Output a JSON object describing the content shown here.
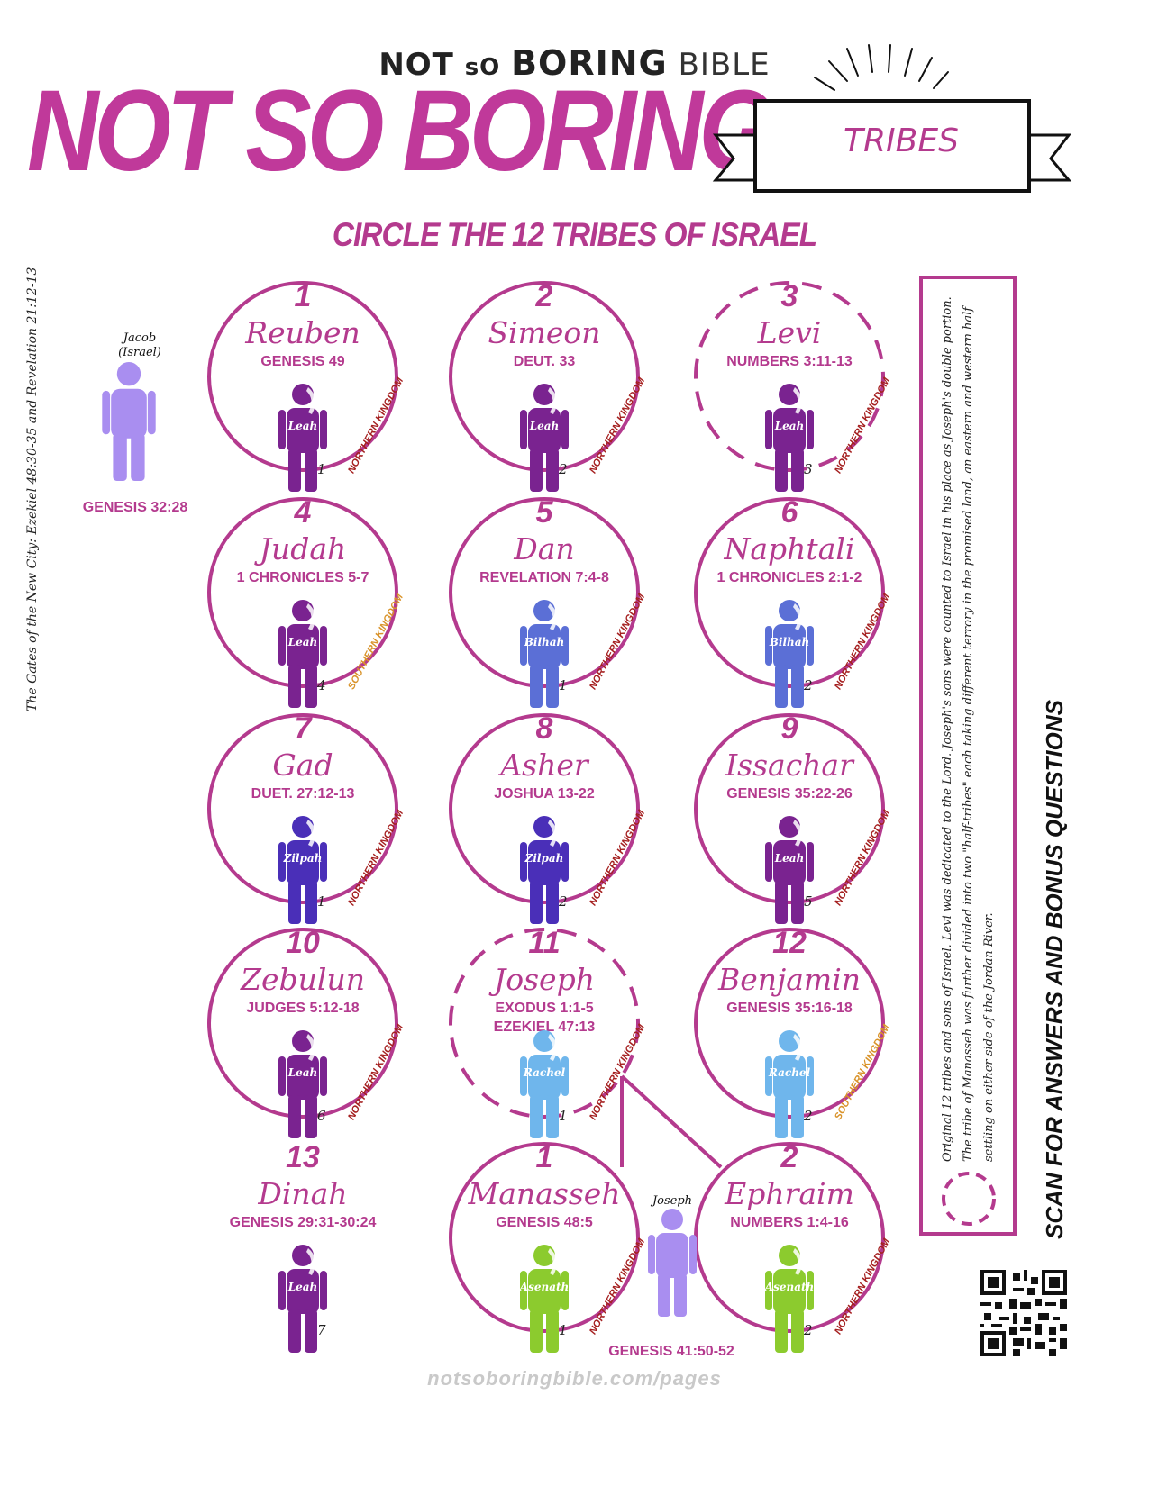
{
  "header": {
    "brand_part1": "NOT",
    "brand_part2": "sO",
    "brand_part3": "BORING",
    "brand_part4": "BIBLE",
    "title": "NOT SO BORING",
    "banner": "TRIBES",
    "subtitle": "CIRCLE THE 12 TRIBES OF ISRAEL"
  },
  "side_reference": "The Gates of the New City: Ezekiel 48:30-35 and Revelation 21:12-13",
  "jacob": {
    "line1": "Jacob",
    "line2": "(Israel)",
    "reference": "GENESIS 32:28",
    "color": "#a98ef0"
  },
  "tribes": [
    {
      "number": "1",
      "name": "Reuben",
      "reference": "GENESIS 49",
      "reference2": "",
      "mother": "Leah",
      "order": "1",
      "kingdom": "NORTHERN KINGDOM",
      "kingdom_type": "north",
      "figure_color": "#7a2390",
      "dashed": false
    },
    {
      "number": "2",
      "name": "Simeon",
      "reference": "DEUT. 33",
      "reference2": "",
      "mother": "Leah",
      "order": "2",
      "kingdom": "NORTHERN KINGDOM",
      "kingdom_type": "north",
      "figure_color": "#7a2390",
      "dashed": false
    },
    {
      "number": "3",
      "name": "Levi",
      "reference": "NUMBERS 3:11-13",
      "reference2": "",
      "mother": "Leah",
      "order": "3",
      "kingdom": "NORTHERN KINGDOM",
      "kingdom_type": "north",
      "figure_color": "#7a2390",
      "dashed": true
    },
    {
      "number": "4",
      "name": "Judah",
      "reference": "1 CHRONICLES 5-7",
      "reference2": "",
      "mother": "Leah",
      "order": "4",
      "kingdom": "SOUTHERN KINGDOM",
      "kingdom_type": "south",
      "figure_color": "#7a2390",
      "dashed": false
    },
    {
      "number": "5",
      "name": "Dan",
      "reference": "REVELATION 7:4-8",
      "reference2": "",
      "mother": "Bilhah",
      "order": "1",
      "kingdom": "NORTHERN KINGDOM",
      "kingdom_type": "north",
      "figure_color": "#5b6fd6",
      "dashed": false
    },
    {
      "number": "6",
      "name": "Naphtali",
      "reference": "1 CHRONICLES 2:1-2",
      "reference2": "",
      "mother": "Bilhah",
      "order": "2",
      "kingdom": "NORTHERN KINGDOM",
      "kingdom_type": "north",
      "figure_color": "#5b6fd6",
      "dashed": false
    },
    {
      "number": "7",
      "name": "Gad",
      "reference": "DUET. 27:12-13",
      "reference2": "",
      "mother": "Zilpah",
      "order": "1",
      "kingdom": "NORTHERN KINGDOM",
      "kingdom_type": "north",
      "figure_color": "#4a2fb8",
      "dashed": false
    },
    {
      "number": "8",
      "name": "Asher",
      "reference": "JOSHUA 13-22",
      "reference2": "",
      "mother": "Zilpah",
      "order": "2",
      "kingdom": "NORTHERN KINGDOM",
      "kingdom_type": "north",
      "figure_color": "#4a2fb8",
      "dashed": false
    },
    {
      "number": "9",
      "name": "Issachar",
      "reference": "GENESIS 35:22-26",
      "reference2": "",
      "mother": "Leah",
      "order": "5",
      "kingdom": "NORTHERN KINGDOM",
      "kingdom_type": "north",
      "figure_color": "#7a2390",
      "dashed": false
    },
    {
      "number": "10",
      "name": "Zebulun",
      "reference": "JUDGES 5:12-18",
      "reference2": "",
      "mother": "Leah",
      "order": "6",
      "kingdom": "NORTHERN KINGDOM",
      "kingdom_type": "north",
      "figure_color": "#7a2390",
      "dashed": false
    },
    {
      "number": "11",
      "name": "Joseph",
      "reference": "EXODUS 1:1-5",
      "reference2": "EZEKIEL 47:13",
      "mother": "Rachel",
      "order": "1",
      "kingdom": "NORTHERN KINGDOM",
      "kingdom_type": "north",
      "figure_color": "#6fb6ec",
      "dashed": true
    },
    {
      "number": "12",
      "name": "Benjamin",
      "reference": "GENESIS 35:16-18",
      "reference2": "",
      "mother": "Rachel",
      "order": "2",
      "kingdom": "SOUTHERN KINGDOM",
      "kingdom_type": "south",
      "figure_color": "#6fb6ec",
      "dashed": false
    }
  ],
  "dinah": {
    "number": "13",
    "name": "Dinah",
    "reference": "GENESIS 29:31-30:24",
    "mother": "Leah",
    "order": "7",
    "figure_color": "#7a2390"
  },
  "half_tribes": [
    {
      "number": "1",
      "name": "Manasseh",
      "reference": "GENESIS 48:5",
      "mother": "Asenath",
      "order": "1",
      "kingdom": "NORTHERN KINGDOM",
      "figure_color": "#8ccb2e"
    },
    {
      "number": "2",
      "name": "Ephraim",
      "reference": "NUMBERS 1:4-16",
      "mother": "Asenath",
      "order": "2",
      "kingdom": "NORTHERN KINGDOM",
      "figure_color": "#8ccb2e"
    }
  ],
  "joseph": {
    "label": "Joseph",
    "reference": "GENESIS 41:50-52",
    "color": "#a98ef0"
  },
  "note": "Original 12 tribes and sons of Israel. Levi was dedicated to the Lord. Joseph's sons were counted to Israel in his place as Joseph's double portion. The tribe of Manasseh was further divided into two \"half-tribes\" each taking different terrory in the promised land, an eastern and western half settling on either side of the Jordan River.",
  "scan_text": "SCAN FOR ANSWERS AND BONUS QUESTIONS",
  "footer": "notsoboringbible.com/pages",
  "colors": {
    "accent": "#b43a8e",
    "north": "#a52020",
    "south": "#d9932a"
  }
}
